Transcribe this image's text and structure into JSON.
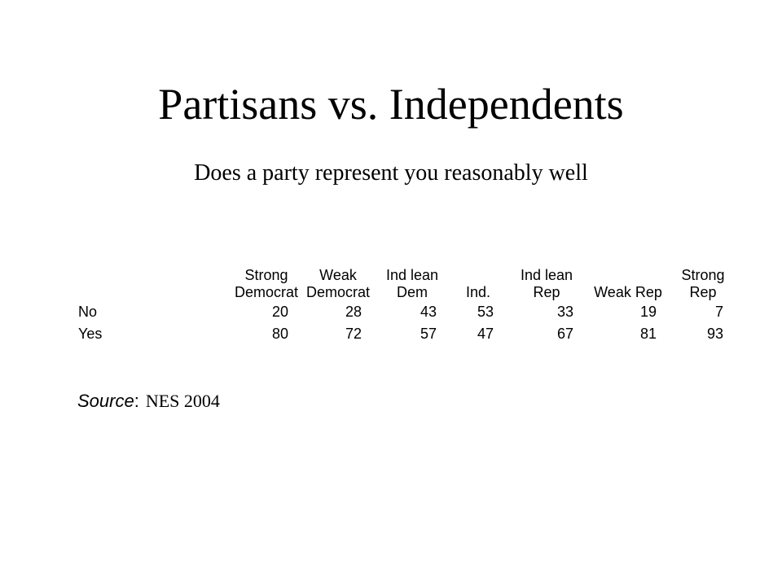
{
  "slide": {
    "title": "Partisans vs. Independents",
    "subtitle": "Does a party represent you reasonably well"
  },
  "table": {
    "columns": [
      [
        "Strong",
        "Democrat"
      ],
      [
        "Weak",
        "Democrat"
      ],
      [
        "Ind lean",
        "Dem"
      ],
      [
        "",
        "Ind."
      ],
      [
        "Ind lean",
        "Rep"
      ],
      [
        "",
        "Weak Rep"
      ],
      [
        "Strong",
        "Rep"
      ]
    ],
    "rows": [
      {
        "label": "No",
        "values": [
          "20",
          "28",
          "43",
          "53",
          "33",
          "19",
          "7"
        ]
      },
      {
        "label": "Yes",
        "values": [
          "80",
          "72",
          "57",
          "47",
          "67",
          "81",
          "93"
        ]
      }
    ]
  },
  "source": {
    "label": "Source",
    "separator": ":",
    "value": "NES 2004"
  }
}
